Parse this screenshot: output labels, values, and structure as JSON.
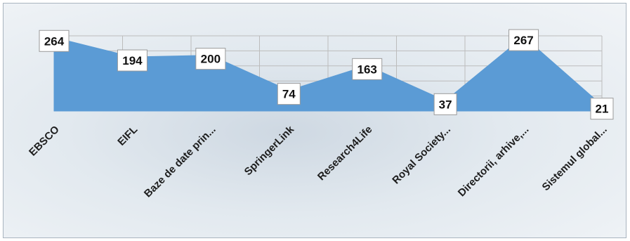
{
  "chart_data": {
    "type": "area",
    "categories": [
      "EBSCO",
      "EIFL",
      "Baze de date prin...",
      "SpringerLink",
      "Research4Life",
      "Royal Society...",
      "Directorii, arhive,...",
      "Sistemul global..."
    ],
    "values": [
      264,
      194,
      200,
      74,
      163,
      37,
      267,
      21
    ],
    "title": "",
    "xlabel": "",
    "ylabel": "",
    "ylim": [
      0,
      300
    ],
    "grid": true,
    "legend": "none",
    "colors": {
      "area": "#5b9bd5",
      "grid": "#bcbcbc",
      "label_box": "#ffffff"
    }
  }
}
